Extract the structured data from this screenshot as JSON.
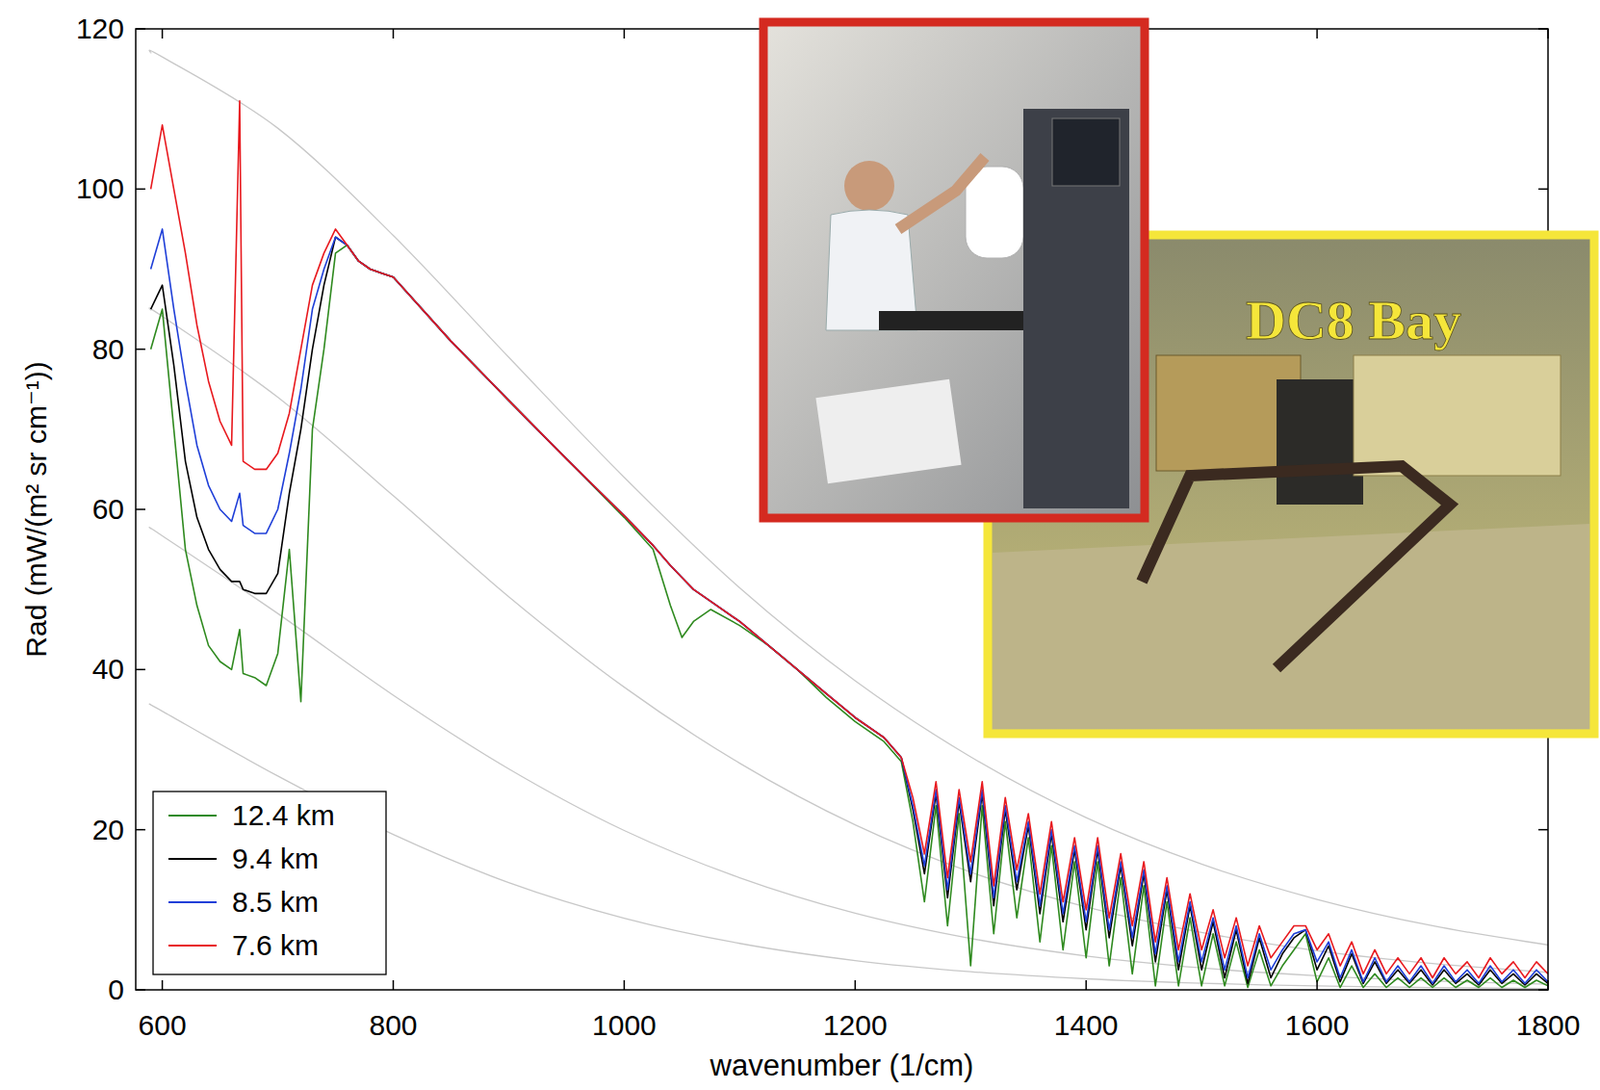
{
  "chart_data": {
    "type": "line",
    "x_label": "wavenumber (1/cm)",
    "y_label": "Rad (mW/(m² sr cm⁻¹))",
    "xlim": [
      577,
      1800
    ],
    "ylim": [
      0,
      120
    ],
    "xticks": [
      600,
      800,
      1000,
      1200,
      1400,
      1600,
      1800
    ],
    "yticks": [
      0,
      20,
      40,
      60,
      80,
      100,
      120
    ],
    "grid": false,
    "legend": "lower left",
    "x": [
      590,
      600,
      610,
      620,
      630,
      640,
      650,
      660,
      667,
      670,
      680,
      690,
      700,
      710,
      720,
      730,
      740,
      750,
      760,
      770,
      780,
      790,
      800,
      850,
      900,
      950,
      1000,
      1025,
      1040,
      1050,
      1060,
      1075,
      1100,
      1125,
      1150,
      1175,
      1200,
      1225,
      1240,
      1250,
      1260,
      1270,
      1280,
      1290,
      1300,
      1310,
      1320,
      1330,
      1340,
      1350,
      1360,
      1370,
      1380,
      1390,
      1400,
      1410,
      1420,
      1430,
      1440,
      1450,
      1460,
      1470,
      1480,
      1490,
      1500,
      1510,
      1520,
      1530,
      1540,
      1550,
      1560,
      1570,
      1580,
      1590,
      1600,
      1610,
      1620,
      1630,
      1640,
      1650,
      1660,
      1670,
      1680,
      1690,
      1700,
      1710,
      1720,
      1730,
      1740,
      1750,
      1760,
      1770,
      1780,
      1790,
      1800
    ],
    "series": [
      {
        "name": "12.4 km",
        "color": "#2f8a1f",
        "values": [
          80,
          85,
          70,
          55,
          48,
          43,
          41,
          40,
          45,
          39.5,
          39,
          38,
          42,
          55,
          36,
          70,
          80,
          92,
          93,
          91,
          90,
          89.5,
          89,
          81,
          73.6,
          66.3,
          59,
          55,
          48,
          44,
          46,
          47.5,
          45.5,
          43,
          40,
          36.5,
          33.5,
          31,
          28.5,
          21,
          11,
          23,
          8,
          22,
          3,
          23,
          7,
          21,
          9,
          19,
          6,
          18,
          5,
          16,
          4,
          16,
          3,
          14,
          2,
          13,
          0.5,
          11,
          0.5,
          9,
          0.5,
          7,
          0.5,
          6,
          0.3,
          5,
          0.5,
          3,
          5,
          7,
          1,
          4,
          0.3,
          3,
          0.3,
          2,
          0.3,
          1.5,
          0.3,
          1.5,
          0.3,
          1.5,
          0.3,
          1.2,
          0.3,
          1.5,
          0.3,
          1.2,
          0.3,
          1.2,
          0.5
        ]
      },
      {
        "name": "9.4 km",
        "color": "#000000",
        "values": [
          85,
          88,
          78,
          66,
          59,
          55,
          52.5,
          51,
          51,
          50,
          49.5,
          49.5,
          52,
          62,
          70,
          80,
          88,
          94,
          93,
          91,
          90,
          89.5,
          89,
          81,
          73.6,
          66.3,
          59.2,
          55.5,
          53,
          51.5,
          50,
          48.5,
          46,
          43,
          40,
          37,
          34,
          31.5,
          29,
          22.5,
          14.5,
          24.5,
          11.5,
          23.5,
          13.5,
          24.5,
          10.5,
          22.5,
          12.5,
          20.5,
          9.5,
          19.5,
          8.5,
          17.5,
          7.5,
          17.5,
          6.5,
          15.5,
          5.5,
          14.5,
          3.5,
          12.5,
          2.5,
          10.5,
          2.5,
          8.5,
          1.5,
          7.5,
          0.8,
          6.5,
          1.5,
          4.5,
          6.5,
          7.5,
          2.5,
          5.5,
          1,
          4.5,
          0.8,
          3.5,
          0.8,
          2.5,
          0.8,
          2.5,
          0.6,
          2.5,
          0.8,
          2,
          0.6,
          2.5,
          0.8,
          2,
          0.6,
          2,
          0.8
        ]
      },
      {
        "name": "8.5 km",
        "color": "#1f3fd8",
        "values": [
          90,
          95,
          85,
          76,
          68,
          63,
          60,
          58.5,
          62,
          58,
          57,
          57,
          60,
          67,
          75,
          85,
          90,
          94,
          93,
          91,
          90,
          89.5,
          89,
          81,
          73.6,
          66.3,
          59.2,
          55.5,
          53,
          51.5,
          50,
          48.5,
          46,
          43,
          40,
          37,
          34,
          31.5,
          29,
          23,
          15.5,
          25,
          12.5,
          24,
          14.5,
          25,
          11.5,
          23,
          13.5,
          21,
          10.5,
          20,
          9.5,
          18,
          8.5,
          18,
          7.5,
          16,
          6.5,
          15,
          4.5,
          13,
          3.5,
          11,
          3.5,
          9,
          2.5,
          8,
          1.5,
          7,
          2.5,
          5,
          7,
          7.5,
          3.5,
          6,
          1.5,
          5,
          1,
          4,
          1,
          3,
          1,
          3,
          0.8,
          3,
          1,
          2.5,
          0.8,
          3,
          1,
          2.5,
          0.8,
          2.5,
          1
        ]
      },
      {
        "name": "7.6 km",
        "color": "#e8191e",
        "values": [
          100,
          108,
          100,
          92,
          83,
          76,
          71,
          68,
          111,
          66,
          65,
          65,
          67,
          72,
          80,
          88,
          92,
          95,
          93,
          91,
          90,
          89.5,
          89,
          81,
          73.6,
          66.3,
          59.2,
          55.5,
          53,
          51.5,
          50,
          48.5,
          46,
          43,
          40,
          37,
          34,
          31.5,
          29,
          24,
          17,
          26,
          14,
          25,
          16,
          26,
          13,
          24,
          15,
          22,
          12,
          21,
          11,
          19,
          10,
          19,
          9,
          17,
          8,
          16,
          6,
          14,
          5,
          12,
          5,
          10,
          4,
          9,
          3,
          8,
          4,
          6,
          8,
          8,
          5,
          7,
          3,
          6,
          2,
          5,
          2,
          4,
          2,
          4,
          1.5,
          4,
          2,
          3.5,
          1.5,
          4,
          2,
          3.5,
          1.5,
          3.5,
          2
        ]
      }
    ],
    "reference_curves": {
      "color": "#c8c8c8",
      "x": [
        590,
        600,
        700,
        800,
        900,
        1000,
        1100,
        1200,
        1300,
        1400,
        1500,
        1600,
        1700,
        1800
      ],
      "values": [
        [
          117,
          116.5,
          107.6,
          94.2,
          79.0,
          64.0,
          50.2,
          38.6,
          29.1,
          21.5,
          15.7,
          11.3,
          8.0,
          5.6
        ],
        [
          84.9,
          84.1,
          74.0,
          61.7,
          49.1,
          37.8,
          28.3,
          20.6,
          14.7,
          10.35,
          7.16,
          4.89,
          3.29,
          2.2
        ],
        [
          57.6,
          56.7,
          47.0,
          36.8,
          27.6,
          19.9,
          14.0,
          9.57,
          6.42,
          4.23,
          2.74,
          1.75,
          1.11,
          0.7
        ],
        [
          35.6,
          34.8,
          26.7,
          19.4,
          13.4,
          8.95,
          5.8,
          3.66,
          2.27,
          1.38,
          0.83,
          0.49,
          0.29,
          0.17
        ]
      ]
    },
    "annotations": [
      {
        "text": "DC8 Bay"
      }
    ]
  }
}
